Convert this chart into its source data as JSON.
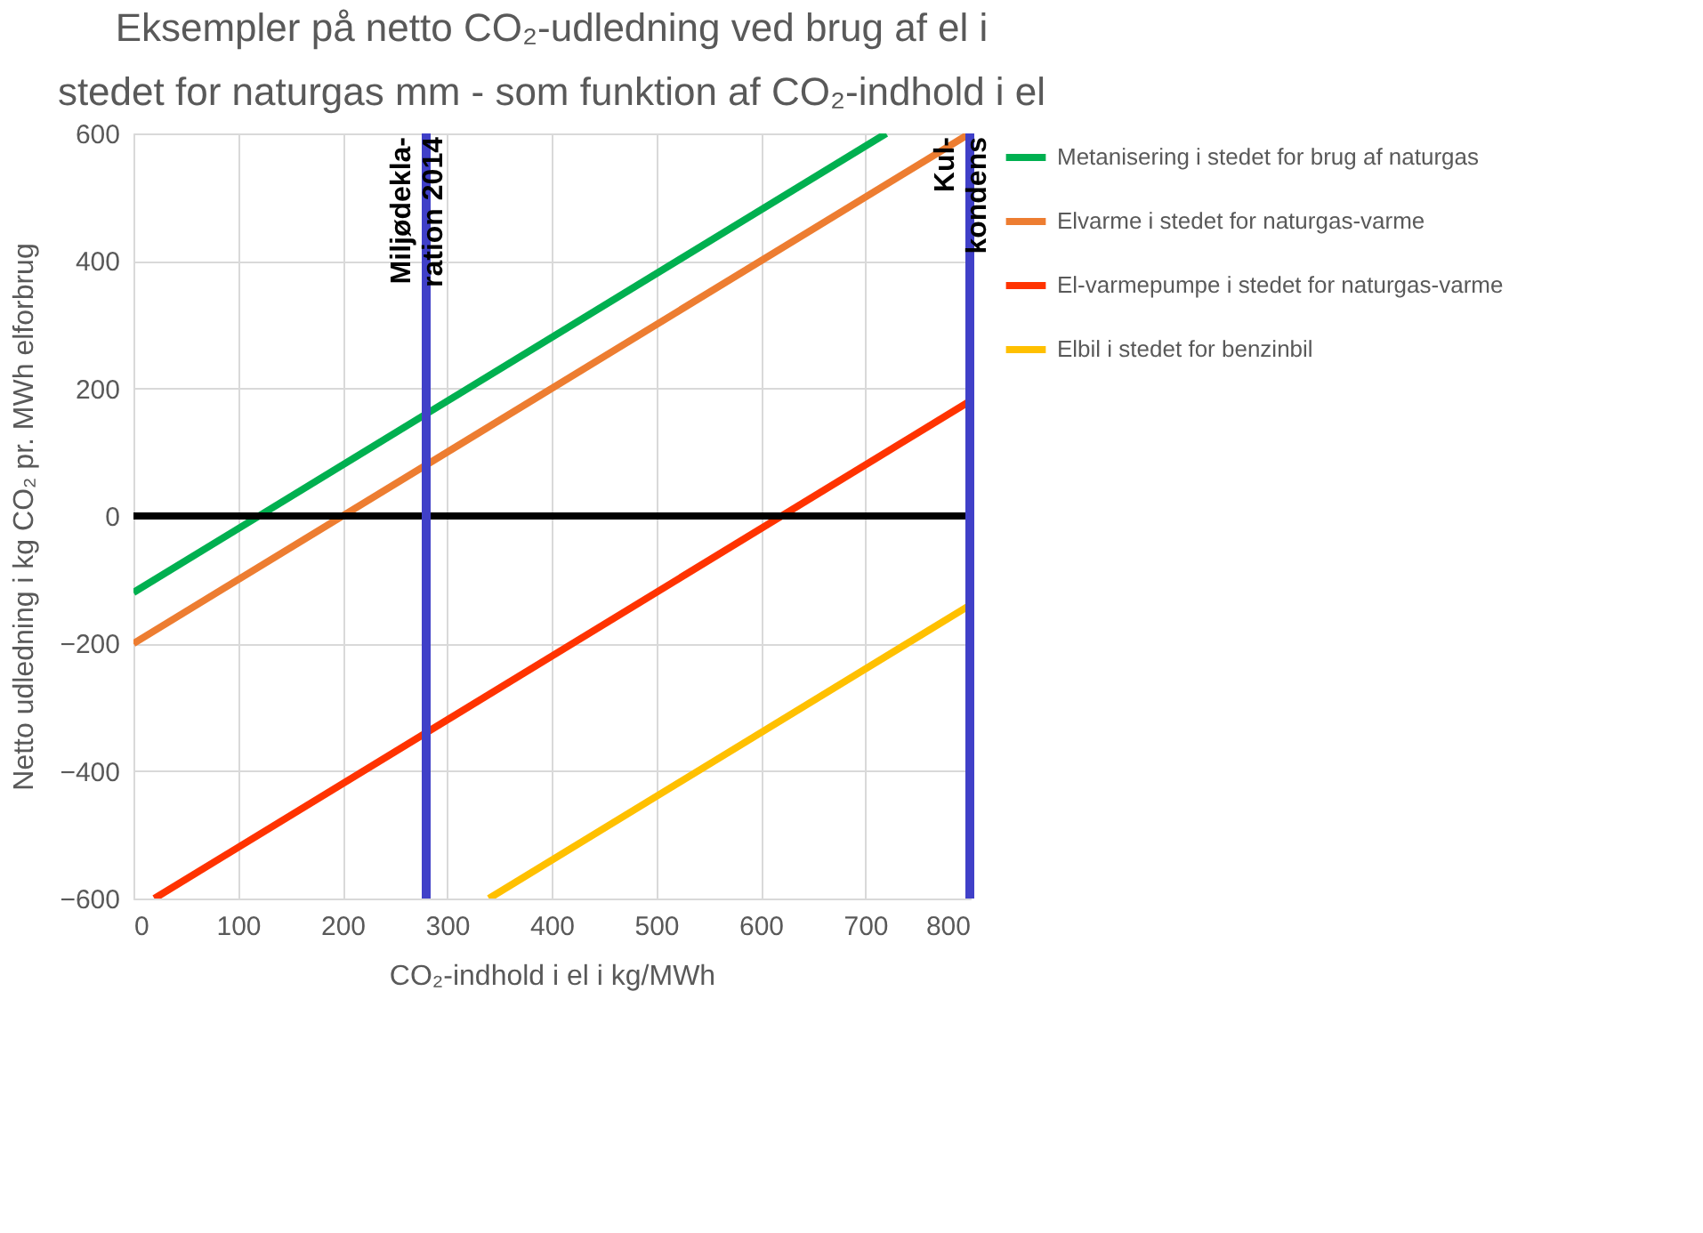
{
  "chart_data": {
    "type": "line",
    "title": "Eksempler på netto CO₂-udledning ved brug af el i\nstedet for naturgas mm - som funktion af CO₂-indhold i el",
    "xlabel": "CO₂-indhold i el i kg/MWh",
    "ylabel": "Netto udledning i kg CO₂ pr. MWh elforbrug",
    "xlim": [
      0,
      800
    ],
    "xticks": [
      0,
      100,
      200,
      300,
      400,
      500,
      600,
      700,
      800
    ],
    "ylim": [
      -600,
      600
    ],
    "yticks": [
      -600,
      -400,
      -200,
      0,
      200,
      400,
      600
    ],
    "grid": true,
    "legend": "right",
    "line_style": "solid",
    "marker": "none",
    "series": [
      {
        "name": "Metanisering i stedet for brug af naturgas",
        "color": "#00b050",
        "x": [
          0,
          720
        ],
        "values": [
          -120,
          600
        ]
      },
      {
        "name": "Elvarme i stedet for naturgas-varme",
        "color": "#ed7d31",
        "x": [
          0,
          800
        ],
        "values": [
          -200,
          600
        ]
      },
      {
        "name": "El-varmepumpe i stedet for naturgas-varme",
        "color": "#ff3300",
        "x": [
          20,
          800
        ],
        "values": [
          -600,
          180
        ]
      },
      {
        "name": "Elbil i stedet for benzinbil",
        "color": "#ffc000",
        "x": [
          340,
          800
        ],
        "values": [
          -600,
          -140
        ]
      }
    ],
    "ref_lines": [
      {
        "axis": "y",
        "value": 0,
        "color": "#000000"
      },
      {
        "axis": "x",
        "value": 280,
        "label": "Miljødekla-\nration 2014",
        "color": "#4040c8"
      },
      {
        "axis": "x",
        "value": 800,
        "label": "Kul-\nkondens",
        "color": "#4040c8"
      }
    ]
  }
}
